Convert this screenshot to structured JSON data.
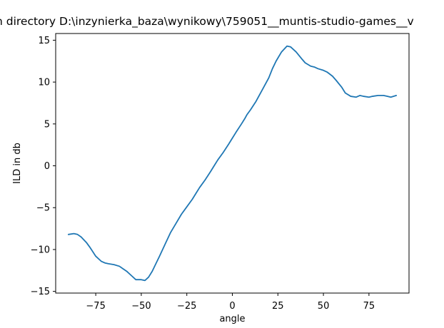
{
  "chart_data": {
    "type": "line",
    "title": "n directory D:\\inzynierka_baza\\wynikowy\\759051__muntis-studio-games__v",
    "xlabel": "angle",
    "ylabel": "ILD in db",
    "xlim": [
      -97,
      97
    ],
    "ylim": [
      -15.2,
      15.8
    ],
    "xticks": [
      -75,
      -50,
      -25,
      0,
      25,
      50,
      75
    ],
    "yticks": [
      -15,
      -10,
      -5,
      0,
      5,
      10,
      15
    ],
    "xtick_labels": [
      "−75",
      "−50",
      "−25",
      "0",
      "25",
      "50",
      "75"
    ],
    "ytick_labels": [
      "−15",
      "−10",
      "−5",
      "0",
      "5",
      "10",
      "15"
    ],
    "grid": false,
    "series": [
      {
        "color": "#1f77b4",
        "x": [
          -90,
          -87,
          -85,
          -83,
          -80,
          -78,
          -75,
          -72,
          -70,
          -68,
          -65,
          -62,
          -60,
          -58,
          -55,
          -53,
          -50,
          -48,
          -46,
          -44,
          -42,
          -40,
          -37,
          -34,
          -31,
          -28,
          -25,
          -22,
          -20,
          -18,
          -15,
          -12,
          -10,
          -8,
          -5,
          -2,
          0,
          2,
          5,
          7,
          8,
          10,
          13,
          15,
          17,
          20,
          22,
          24,
          27,
          30,
          32,
          35,
          38,
          40,
          43,
          45,
          47,
          50,
          52,
          55,
          57,
          60,
          62,
          65,
          68,
          70,
          72,
          75,
          77,
          80,
          83,
          85,
          87,
          90
        ],
        "y": [
          -8.2,
          -8.1,
          -8.2,
          -8.5,
          -9.2,
          -9.8,
          -10.8,
          -11.4,
          -11.6,
          -11.7,
          -11.8,
          -12.0,
          -12.3,
          -12.6,
          -13.2,
          -13.6,
          -13.6,
          -13.7,
          -13.3,
          -12.6,
          -11.7,
          -10.8,
          -9.4,
          -8.0,
          -6.9,
          -5.8,
          -4.9,
          -4.0,
          -3.3,
          -2.6,
          -1.7,
          -0.7,
          0.0,
          0.7,
          1.6,
          2.6,
          3.3,
          4.0,
          5.0,
          5.7,
          6.1,
          6.7,
          7.7,
          8.5,
          9.3,
          10.5,
          11.6,
          12.5,
          13.6,
          14.3,
          14.2,
          13.6,
          12.8,
          12.3,
          11.9,
          11.8,
          11.6,
          11.4,
          11.2,
          10.7,
          10.2,
          9.4,
          8.7,
          8.3,
          8.2,
          8.4,
          8.3,
          8.2,
          8.3,
          8.4,
          8.4,
          8.3,
          8.2,
          8.4
        ]
      }
    ]
  }
}
